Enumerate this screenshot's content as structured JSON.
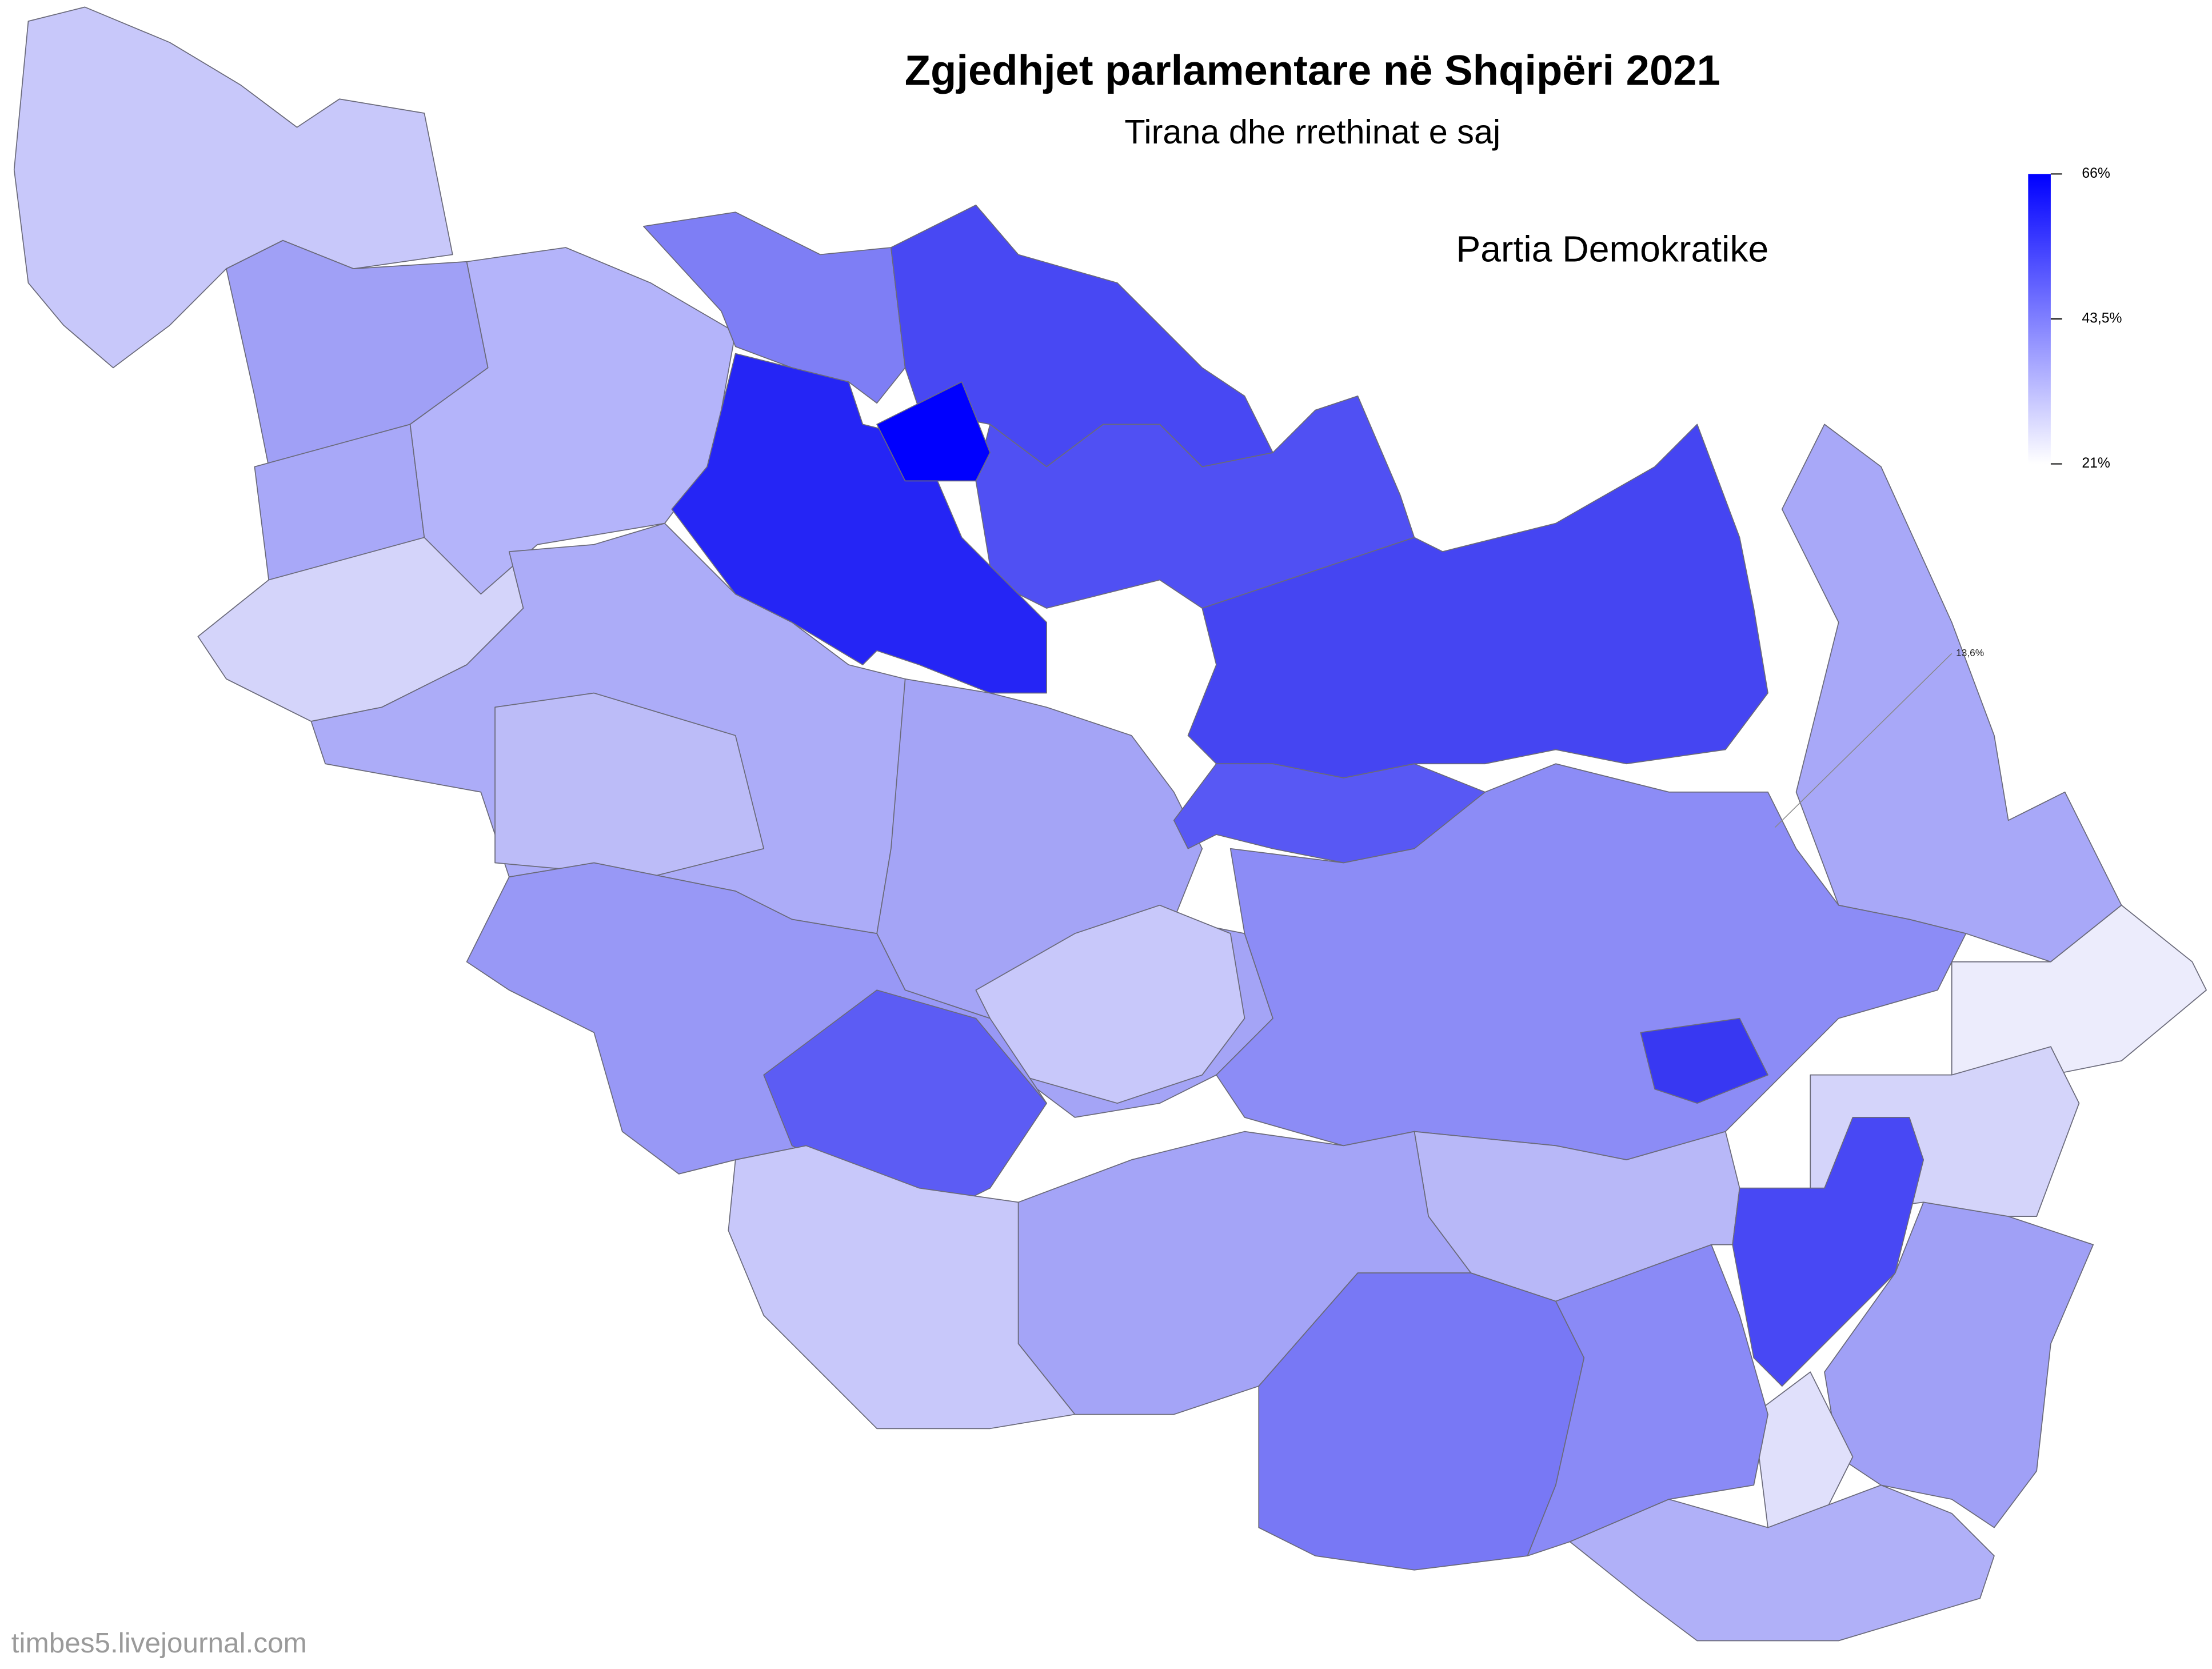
{
  "header": {
    "title": "Zgjedhjet parlamentare në Shqipëri 2021",
    "subtitle": "Tirana dhe rrethinat e saj",
    "party": "Partia Demokratike"
  },
  "legend": {
    "ticks": [
      {
        "value": 66,
        "label": "66%"
      },
      {
        "value": 43.5,
        "label": "43,5%"
      },
      {
        "value": 21,
        "label": "21%"
      }
    ]
  },
  "annotation": "13,6%",
  "credit": "timbes5.livejournal.com"
}
